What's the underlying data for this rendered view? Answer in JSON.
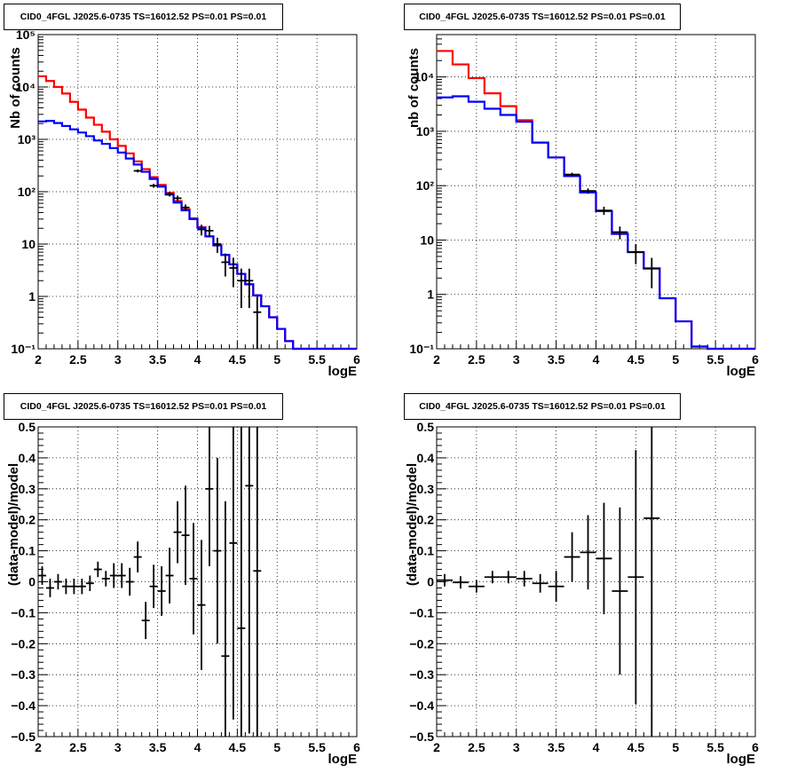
{
  "chart_data": [
    {
      "type": "line",
      "title": "CID0_4FGL J2025.6-0735 TS=16012.52 PS=0.01 PS=0.01",
      "xlabel": "logE",
      "ylabel": "Nb of counts",
      "xlim": [
        2,
        6
      ],
      "ylim": [
        0.1,
        100000
      ],
      "yscale": "log",
      "grid": true,
      "xticks": [
        "2",
        "2.5",
        "3",
        "3.5",
        "4",
        "4.5",
        "5",
        "5.5",
        "6"
      ],
      "yticks": [
        {
          "value": 0.1,
          "label": "10⁻¹"
        },
        {
          "value": 1,
          "label": "1"
        },
        {
          "value": 10,
          "label": "10"
        },
        {
          "value": 100,
          "label": "10²"
        },
        {
          "value": 1000,
          "label": "10³"
        },
        {
          "value": 10000,
          "label": "10⁴"
        },
        {
          "value": 100000,
          "label": "10⁵"
        }
      ],
      "bin_edges": [
        2.0,
        2.1,
        2.2,
        2.3,
        2.4,
        2.5,
        2.6,
        2.7,
        2.8,
        2.9,
        3.0,
        3.1,
        3.2,
        3.3,
        3.4,
        3.5,
        3.6,
        3.7,
        3.8,
        3.9,
        4.0,
        4.1,
        4.2,
        4.3,
        4.4,
        4.5,
        4.6,
        4.7,
        4.8,
        4.9,
        5.0,
        5.1,
        5.2,
        5.3,
        5.4,
        5.5,
        5.6,
        5.7,
        5.8,
        5.9,
        6.0
      ],
      "series": [
        {
          "color": "#ff0000",
          "style": "histogram",
          "values": [
            16000,
            13000,
            10000,
            7500,
            5200,
            3700,
            2600,
            1900,
            1400,
            1000,
            750,
            540,
            380,
            270,
            190,
            135,
            95,
            66,
            46,
            31,
            21,
            14,
            9.5,
            6.2,
            4.1,
            2.7,
            1.7,
            1.05,
            0.65,
            0.4,
            0.24,
            0.14,
            0.1,
            0.1,
            0.1,
            0.1,
            0.1,
            0.1,
            0.1,
            0.1
          ]
        },
        {
          "color": "#0000ff",
          "style": "histogram",
          "values": [
            2200,
            2250,
            2050,
            1800,
            1550,
            1350,
            1150,
            950,
            820,
            680,
            560,
            430,
            330,
            240,
            175,
            125,
            88,
            62,
            44,
            30,
            20.5,
            14,
            9.4,
            6.2,
            4.1,
            2.7,
            1.7,
            1.05,
            0.65,
            0.4,
            0.24,
            0.14,
            0.1,
            0.1,
            0.1,
            0.1,
            0.1,
            0.1,
            0.1,
            0.1
          ]
        },
        {
          "color": "#000000",
          "style": "points",
          "x": [
            3.25,
            3.45,
            3.65,
            3.75,
            3.85,
            4.05,
            4.15,
            4.25,
            4.35,
            4.45,
            4.55,
            4.65,
            4.75
          ],
          "values": [
            250,
            130,
            90,
            75,
            50,
            19,
            18,
            10,
            4.5,
            3.5,
            2.0,
            2.0,
            0.5
          ],
          "yerr_lo": [
            16,
            11,
            9,
            9,
            7,
            4.4,
            4.2,
            3.2,
            2.1,
            2.0,
            1.4,
            1.4,
            0.5
          ],
          "yerr_hi": [
            16,
            11,
            9,
            9,
            7,
            4.4,
            4.2,
            3.2,
            2.1,
            2.0,
            1.4,
            1.4,
            0.5
          ]
        }
      ]
    },
    {
      "type": "line",
      "title": "CID0_4FGL J2025.6-0735 TS=16012.52 PS=0.01 PS=0.01",
      "xlabel": "logE",
      "ylabel": "nb of counts",
      "xlim": [
        2,
        6
      ],
      "ylim": [
        0.1,
        60000
      ],
      "yscale": "log",
      "grid": true,
      "xticks": [
        "2",
        "2.5",
        "3",
        "3.5",
        "4",
        "4.5",
        "5",
        "5.5",
        "6"
      ],
      "yticks": [
        {
          "value": 0.1,
          "label": "10⁻¹"
        },
        {
          "value": 1,
          "label": "1"
        },
        {
          "value": 10,
          "label": "10"
        },
        {
          "value": 100,
          "label": "10²"
        },
        {
          "value": 1000,
          "label": "10³"
        },
        {
          "value": 10000,
          "label": "10⁴"
        }
      ],
      "bin_edges": [
        2.0,
        2.2,
        2.4,
        2.6,
        2.8,
        3.0,
        3.2,
        3.4,
        3.6,
        3.8,
        4.0,
        4.2,
        4.4,
        4.6,
        4.8,
        5.0,
        5.2,
        5.4,
        5.6,
        5.8,
        6.0
      ],
      "series": [
        {
          "color": "#ff0000",
          "style": "histogram",
          "values": [
            30000,
            17000,
            9500,
            5000,
            2900,
            1600,
            620,
            330,
            150,
            75,
            34,
            13,
            6,
            3,
            0.85,
            0.32,
            0.11,
            0.1,
            0.1,
            0.1
          ]
        },
        {
          "color": "#0000ff",
          "style": "histogram",
          "values": [
            4200,
            4400,
            3500,
            2600,
            2000,
            1500,
            620,
            330,
            150,
            75,
            34,
            13,
            6,
            3,
            0.85,
            0.32,
            0.11,
            0.1,
            0.1,
            0.1
          ]
        },
        {
          "color": "#000000",
          "style": "points",
          "x": [
            3.7,
            3.9,
            4.1,
            4.3,
            4.5,
            4.7
          ],
          "values": [
            160,
            80,
            35,
            14,
            6,
            3
          ],
          "yerr_lo": [
            13,
            9,
            6,
            3.7,
            2.4,
            1.7
          ],
          "yerr_hi": [
            13,
            9,
            6,
            3.7,
            2.4,
            1.7
          ]
        }
      ]
    },
    {
      "type": "scatter",
      "title": "CID0_4FGL J2025.6-0735 TS=16012.52 PS=0.01 PS=0.01",
      "xlabel": "logE",
      "ylabel": "(data-model)/model",
      "xlim": [
        2,
        6
      ],
      "ylim": [
        -0.5,
        0.5
      ],
      "grid": true,
      "xticks": [
        "2",
        "2.5",
        "3",
        "3.5",
        "4",
        "4.5",
        "5",
        "5.5",
        "6"
      ],
      "yticks": [
        "−0.5",
        "−0.4",
        "−0.3",
        "−0.2",
        "−0.1",
        "0",
        "0.1",
        "0.2",
        "0.3",
        "0.4",
        "0.5"
      ],
      "x": [
        2.05,
        2.15,
        2.25,
        2.35,
        2.45,
        2.55,
        2.65,
        2.75,
        2.85,
        2.95,
        3.05,
        3.15,
        3.25,
        3.35,
        3.45,
        3.55,
        3.65,
        3.75,
        3.85,
        3.95,
        4.05,
        4.15,
        4.25,
        4.35,
        4.45,
        4.55,
        4.65,
        4.75
      ],
      "values": [
        0.02,
        -0.02,
        0.0,
        -0.015,
        -0.015,
        -0.015,
        -0.005,
        0.04,
        0.01,
        0.02,
        0.02,
        0.0,
        0.08,
        -0.125,
        -0.015,
        -0.03,
        0.02,
        0.16,
        0.15,
        0.01,
        -0.075,
        0.3,
        0.1,
        -0.24,
        0.125,
        -0.15,
        0.31,
        0.035
      ],
      "yerr": [
        0.03,
        0.03,
        0.025,
        0.025,
        0.025,
        0.025,
        0.025,
        0.025,
        0.025,
        0.04,
        0.04,
        0.045,
        0.05,
        0.06,
        0.07,
        0.08,
        0.09,
        0.1,
        0.16,
        0.18,
        0.21,
        0.25,
        0.3,
        0.5,
        0.57,
        0.65,
        0.8,
        1.0
      ]
    },
    {
      "type": "scatter",
      "title": "CID0_4FGL J2025.6-0735 TS=16012.52 PS=0.01 PS=0.01",
      "xlabel": "logE",
      "ylabel": "(data-model)/model",
      "xlim": [
        2,
        6
      ],
      "ylim": [
        -0.5,
        0.5
      ],
      "grid": true,
      "xticks": [
        "2",
        "2.5",
        "3",
        "3.5",
        "4",
        "4.5",
        "5",
        "5.5",
        "6"
      ],
      "yticks": [
        "−0.5",
        "−0.4",
        "−0.3",
        "−0.2",
        "−0.1",
        "0",
        "0.1",
        "0.2",
        "0.3",
        "0.4",
        "0.5"
      ],
      "x": [
        2.1,
        2.3,
        2.5,
        2.7,
        2.9,
        3.1,
        3.3,
        3.5,
        3.7,
        3.9,
        4.1,
        4.3,
        4.5,
        4.7
      ],
      "values": [
        0.005,
        -0.002,
        -0.015,
        0.015,
        0.015,
        0.01,
        -0.005,
        -0.015,
        0.08,
        0.095,
        0.075,
        -0.03,
        0.015,
        0.205
      ],
      "yerr": [
        0.02,
        0.02,
        0.02,
        0.02,
        0.02,
        0.025,
        0.03,
        0.05,
        0.08,
        0.12,
        0.18,
        0.27,
        0.41,
        0.72
      ]
    }
  ]
}
